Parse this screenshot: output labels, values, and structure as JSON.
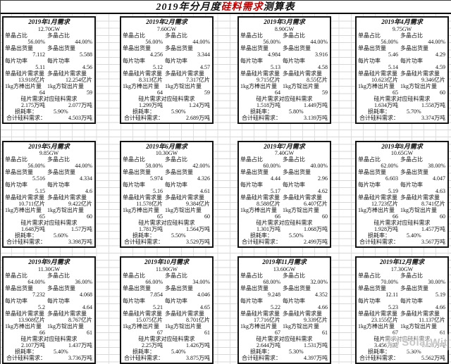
{
  "title": {
    "prefix": "2019年分月度",
    "highlight": "硅料需求",
    "suffix": "测算表",
    "highlight_color": "#c00000"
  },
  "labels": {
    "mono_share": "单晶占比",
    "poly_share": "多晶占比",
    "mono_out": "单晶出货量",
    "poly_out": "多晶出货量",
    "power": "每片功率",
    "mono_wafer": "单晶硅片需求量",
    "poly_wafer": "多晶硅片需求量",
    "rod": "1kg方棒出片量",
    "ingot": "1kg方锭出片量",
    "mat_header": "硅片需求对应硅料需求",
    "loss": "损耗率：",
    "total": "合计硅料需求："
  },
  "watermark": {
    "text": "SolarWit"
  },
  "months": [
    {
      "header": "2019年1月需求",
      "gw": "12.70GW",
      "mono_share": "56.00%",
      "poly_share": "44.00%",
      "mono_out": "7.112",
      "poly_out": "5.588",
      "mono_power": "5.11",
      "poly_power": "4.56",
      "mono_wafer": "13.918亿片",
      "poly_wafer": "12.254亿片",
      "rod": "64",
      "ingot": "59",
      "mono_mat": "2.175万吨",
      "poly_mat": "2.077万吨",
      "loss": "5.90%",
      "total": "4.503万吨"
    },
    {
      "header": "2019年2月需求",
      "gw": "7.60GW",
      "mono_share": "56.00%",
      "poly_share": "44.00%",
      "mono_out": "4.256",
      "poly_out": "3.344",
      "mono_power": "5.12",
      "poly_power": "4.57",
      "mono_wafer": "8.313亿片",
      "poly_wafer": "7.317亿片",
      "rod": "64",
      "ingot": "59",
      "mono_mat": "1.299万吨",
      "poly_mat": "1.24万吨",
      "loss": "5.90%",
      "total": "2.689万吨"
    },
    {
      "header": "2019年3月需求",
      "gw": "8.90GW",
      "mono_share": "56.00%",
      "poly_share": "44.00%",
      "mono_out": "4.984",
      "poly_out": "3.916",
      "mono_power": "5.13",
      "poly_power": "4.58",
      "mono_wafer": "9.715亿片",
      "poly_wafer": "8.55亿片",
      "rod": "64",
      "ingot": "59",
      "mono_mat": "1.518万吨",
      "poly_mat": "1.449万吨",
      "loss": "5.80%",
      "total": "3.139万吨"
    },
    {
      "header": "2019年4月需求",
      "gw": "9.75GW",
      "mono_share": "56.00%",
      "poly_share": "44.00%",
      "mono_out": "5.46",
      "poly_out": "4.29",
      "mono_power": "5.14",
      "poly_power": "4.59",
      "mono_wafer": "10.623亿片",
      "poly_wafer": "9.346亿片",
      "rod": "65",
      "ingot": "60",
      "mono_mat": "1.634万吨",
      "poly_mat": "1.558万吨",
      "loss": "5.70%",
      "total": "3.374万吨"
    },
    {
      "header": "2019年5月需求",
      "gw": "9.85GW",
      "mono_share": "56.00%",
      "poly_share": "44.00%",
      "mono_out": "5.516",
      "poly_out": "4.334",
      "mono_power": "5.15",
      "poly_power": "4.6",
      "mono_wafer": "10.711亿片",
      "poly_wafer": "9.422亿片",
      "rod": "65",
      "ingot": "60",
      "mono_mat": "1.648万吨",
      "poly_mat": "1.57万吨",
      "loss": "5.60%",
      "total": "3.398万吨"
    },
    {
      "header": "2019年6月需求",
      "gw": "10.30GW",
      "mono_share": "58.00%",
      "poly_share": "42.00%",
      "mono_out": "5.974",
      "poly_out": "4.326",
      "mono_power": "5.16",
      "poly_power": "4.61",
      "mono_wafer": "11.578亿片",
      "poly_wafer": "9.384亿片",
      "rod": "65",
      "ingot": "60",
      "mono_mat": "1.781万吨",
      "poly_mat": "1.564万吨",
      "loss": "5.50%",
      "total": "3.529万吨"
    },
    {
      "header": "2019年7月需求",
      "gw": "7.40GW",
      "mono_share": "60.00%",
      "poly_share": "40.00%",
      "mono_out": "4.44",
      "poly_out": "2.96",
      "mono_power": "5.17",
      "poly_power": "4.62",
      "mono_wafer": "8.588亿片",
      "poly_wafer": "6.407亿片",
      "rod": "66",
      "ingot": "60",
      "mono_mat": "1.301万吨",
      "poly_mat": "1.068万吨",
      "loss": "5.50%",
      "total": "2.499万吨"
    },
    {
      "header": "2019年8月需求",
      "gw": "10.65GW",
      "mono_share": "62.00%",
      "poly_share": "38.00%",
      "mono_out": "6.603",
      "poly_out": "4.047",
      "mono_power": "5.19",
      "poly_power": "4.63",
      "mono_wafer": "12.723亿片",
      "poly_wafer": "8.741亿片",
      "rod": "66",
      "ingot": "60",
      "mono_mat": "1.928万吨",
      "poly_mat": "1.457万吨",
      "loss": "5.40%",
      "total": "3.567万吨"
    },
    {
      "header": "2019年9月需求",
      "gw": "11.30GW",
      "mono_share": "64.00%",
      "poly_share": "36.00%",
      "mono_out": "7.232",
      "poly_out": "4.068",
      "mono_power": "5.2",
      "poly_power": "4.64",
      "mono_wafer": "13.908亿片",
      "poly_wafer": "8.767亿片",
      "rod": "66",
      "ingot": "61",
      "mono_mat": "2.107万吨",
      "poly_mat": "1.437万吨",
      "loss": "5.40%",
      "total": "3.736万吨"
    },
    {
      "header": "2019年10月需求",
      "gw": "11.90GW",
      "mono_share": "66.00%",
      "poly_share": "34.00%",
      "mono_out": "7.854",
      "poly_out": "4.046",
      "mono_power": "5.21",
      "poly_power": "4.65",
      "mono_wafer": "15.075亿片",
      "poly_wafer": "8.701亿片",
      "rod": "67",
      "ingot": "61",
      "mono_mat": "2.25万吨",
      "poly_mat": "1.426万吨",
      "loss": "5.40%",
      "total": "3.875万吨"
    },
    {
      "header": "2019年11月需求",
      "gw": "13.60GW",
      "mono_share": "68.00%",
      "poly_share": "32.00%",
      "mono_out": "9.248",
      "poly_out": "4.352",
      "mono_power": "5.22",
      "poly_power": "4.66",
      "mono_wafer": "17.716亿片",
      "poly_wafer": "9.339亿片",
      "rod": "67",
      "ingot": "61",
      "mono_mat": "2.644万吨",
      "poly_mat": "1.531万吨",
      "loss": "5.30%",
      "total": "4.397万吨"
    },
    {
      "header": "2019年12月需求",
      "gw": "17.30GW",
      "mono_share": "70.00%",
      "poly_share": "30.00%",
      "mono_out": "12.11",
      "poly_out": "5.19",
      "mono_power": "5.23",
      "poly_power": "4.66",
      "mono_wafer": "23.155亿片",
      "poly_wafer": "11.137亿片",
      "rod": "67",
      "ingot": "61",
      "mono_mat": "3.456万吨",
      "poly_mat": "1.826万吨",
      "loss": "5.30%",
      "total": "5.562万吨"
    }
  ]
}
